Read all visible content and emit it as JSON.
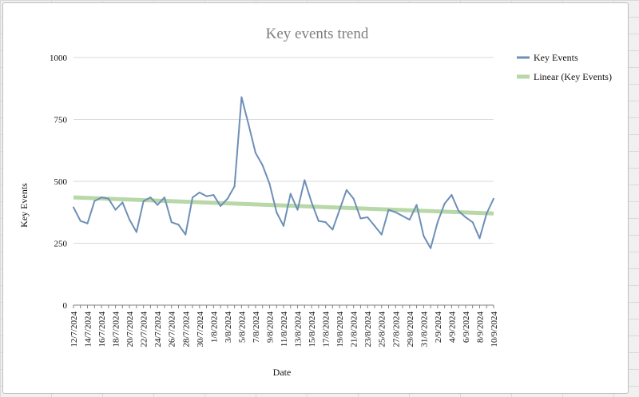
{
  "colors": {
    "series": "#6d8fb7",
    "trend": "#b8d8a8",
    "grid": "#d9d9d9",
    "axis": "#808080"
  },
  "chart_data": {
    "type": "line",
    "title": "Key events trend",
    "xlabel": "Date",
    "ylabel": "Key Events",
    "ylim": [
      0,
      1000
    ],
    "yticks": [
      0,
      250,
      500,
      750,
      1000
    ],
    "grid": "horizontal",
    "legend_position": "right",
    "x": [
      "12/7/2024",
      "13/7/2024",
      "14/7/2024",
      "15/7/2024",
      "16/7/2024",
      "17/7/2024",
      "18/7/2024",
      "19/7/2024",
      "20/7/2024",
      "21/7/2024",
      "22/7/2024",
      "23/7/2024",
      "24/7/2024",
      "25/7/2024",
      "26/7/2024",
      "27/7/2024",
      "28/7/2024",
      "29/7/2024",
      "30/7/2024",
      "31/7/2024",
      "1/8/2024",
      "2/8/2024",
      "3/8/2024",
      "4/8/2024",
      "5/8/2024",
      "6/8/2024",
      "7/8/2024",
      "8/8/2024",
      "9/8/2024",
      "10/8/2024",
      "11/8/2024",
      "12/8/2024",
      "13/8/2024",
      "14/8/2024",
      "15/8/2024",
      "16/8/2024",
      "17/8/2024",
      "18/8/2024",
      "19/8/2024",
      "20/8/2024",
      "21/8/2024",
      "22/8/2024",
      "23/8/2024",
      "24/8/2024",
      "25/8/2024",
      "26/8/2024",
      "27/8/2024",
      "28/8/2024",
      "29/8/2024",
      "30/8/2024",
      "31/8/2024",
      "1/9/2024",
      "2/9/2024",
      "3/9/2024",
      "4/9/2024",
      "5/9/2024",
      "6/9/2024",
      "7/9/2024",
      "8/9/2024",
      "9/9/2024",
      "10/9/2024"
    ],
    "xtick_labels": [
      "12/7/2024",
      "14/7/2024",
      "16/7/2024",
      "18/7/2024",
      "20/7/2024",
      "22/7/2024",
      "24/7/2024",
      "26/7/2024",
      "28/7/2024",
      "30/7/2024",
      "1/8/2024",
      "3/8/2024",
      "5/8/2024",
      "7/8/2024",
      "9/8/2024",
      "11/8/2024",
      "13/8/2024",
      "15/8/2024",
      "17/8/2024",
      "19/8/2024",
      "21/8/2024",
      "23/8/2024",
      "25/8/2024",
      "27/8/2024",
      "29/8/2024",
      "31/8/2024",
      "2/9/2024",
      "4/9/2024",
      "6/9/2024",
      "8/9/2024",
      "10/9/2024"
    ],
    "series": [
      {
        "name": "Key Events",
        "values": [
          395,
          340,
          330,
          420,
          435,
          430,
          385,
          415,
          345,
          295,
          420,
          435,
          405,
          435,
          335,
          325,
          285,
          435,
          455,
          440,
          445,
          400,
          430,
          480,
          840,
          730,
          615,
          565,
          490,
          375,
          320,
          450,
          385,
          505,
          415,
          340,
          335,
          305,
          385,
          465,
          430,
          350,
          355,
          320,
          285,
          385,
          375,
          360,
          345,
          405,
          280,
          230,
          335,
          410,
          445,
          380,
          355,
          335,
          270,
          370,
          430
        ]
      },
      {
        "name": "Linear (Key Events)",
        "kind": "trendline",
        "values_endpoints": [
          435,
          370
        ]
      }
    ]
  }
}
